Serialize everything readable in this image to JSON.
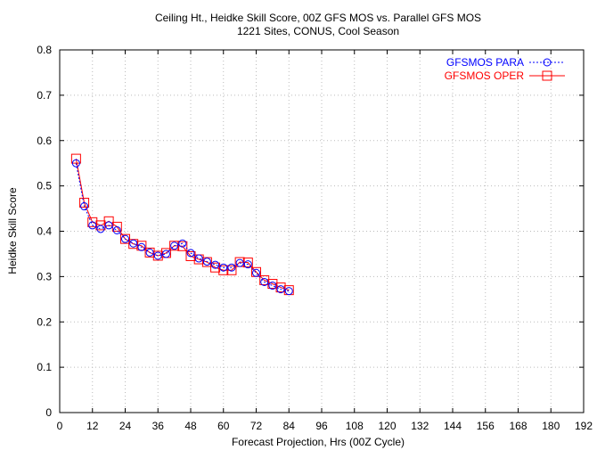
{
  "chart_data": {
    "type": "line",
    "title": "Ceiling Ht., Heidke Skill Score, 00Z GFS MOS vs. Parallel GFS MOS",
    "subtitle": "1221 Sites, CONUS, Cool Season",
    "xlabel": "Forecast Projection, Hrs (00Z Cycle)",
    "ylabel": "Heidke Skill Score",
    "xlim": [
      0,
      192
    ],
    "ylim": [
      0,
      0.8
    ],
    "x_ticks": [
      "0",
      "12",
      "24",
      "36",
      "48",
      "60",
      "72",
      "84",
      "96",
      "108",
      "120",
      "132",
      "144",
      "156",
      "168",
      "180",
      "192"
    ],
    "y_ticks": [
      "0",
      "0.1",
      "0.2",
      "0.3",
      "0.4",
      "0.5",
      "0.6",
      "0.7",
      "0.8"
    ],
    "grid": true,
    "legend_position": "top-right",
    "x": [
      6,
      9,
      12,
      15,
      18,
      21,
      24,
      27,
      30,
      33,
      36,
      39,
      42,
      45,
      48,
      51,
      54,
      57,
      60,
      63,
      66,
      69,
      72,
      75,
      78,
      81,
      84
    ],
    "series": [
      {
        "name": "GFSMOS PARA",
        "color": "#0000ff",
        "marker": "circle",
        "line": "dotted",
        "values": [
          0.55,
          0.455,
          0.413,
          0.405,
          0.413,
          0.402,
          0.383,
          0.373,
          0.365,
          0.353,
          0.346,
          0.35,
          0.368,
          0.373,
          0.352,
          0.34,
          0.333,
          0.326,
          0.32,
          0.32,
          0.33,
          0.327,
          0.308,
          0.288,
          0.28,
          0.272,
          0.268
        ]
      },
      {
        "name": "GFSMOS OPER",
        "color": "#ff0000",
        "marker": "square",
        "line": "solid",
        "values": [
          0.56,
          0.463,
          0.42,
          0.413,
          0.422,
          0.41,
          0.383,
          0.372,
          0.368,
          0.353,
          0.346,
          0.352,
          0.368,
          0.367,
          0.345,
          0.338,
          0.332,
          0.32,
          0.314,
          0.314,
          0.332,
          0.331,
          0.31,
          0.292,
          0.284,
          0.276,
          0.27
        ]
      }
    ]
  }
}
